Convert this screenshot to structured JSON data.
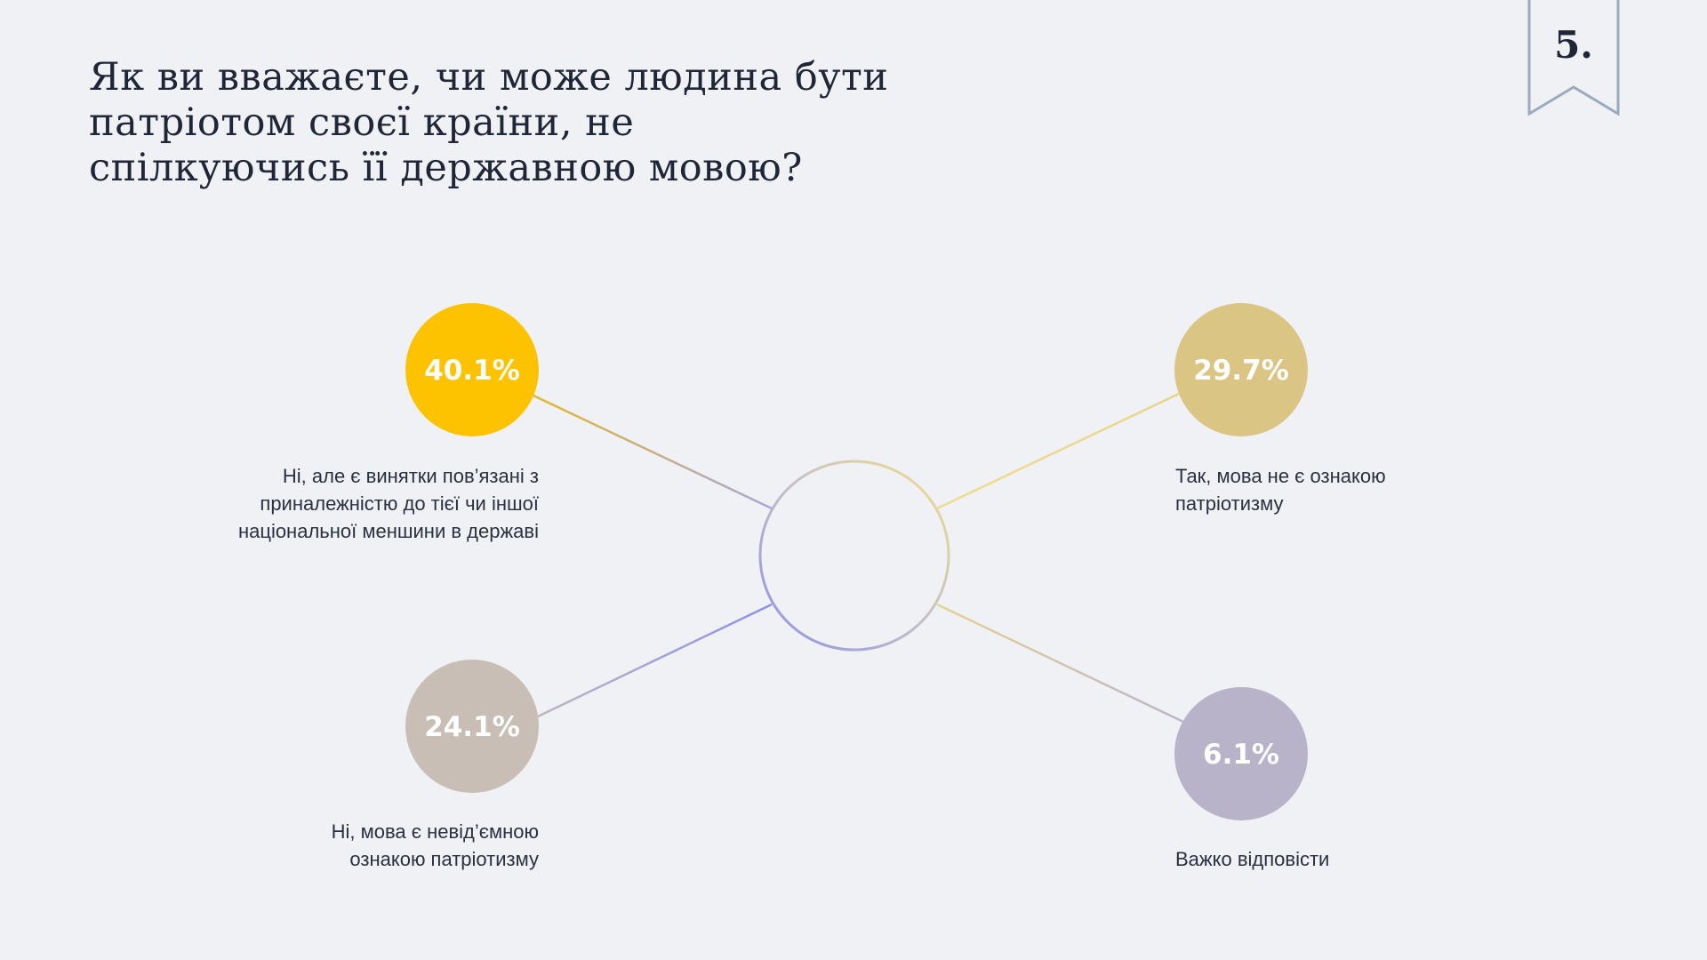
{
  "title": "Як ви вважаєте, чи може людина бути патріотом своєї країни, не спілкуючись її державною мовою?",
  "page_number": "5.",
  "chart_data": {
    "type": "pie",
    "title": "Як ви вважаєте, чи може людина бути патріотом своєї країни, не спілкуючись її державною мовою?",
    "categories": [
      "Ні, але є винятки пов’язані з приналежністю до тієї чи іншої національної меншини в державі",
      "Так, мова не є ознакою патріотизму",
      "Ні, мова є невід’ємною ознакою патріотизму",
      "Важко відповісти"
    ],
    "values": [
      40.1,
      29.7,
      24.1,
      6.1
    ],
    "value_labels": [
      "40.1%",
      "29.7%",
      "24.1%",
      "6.1%"
    ],
    "colors": [
      "#fdc200",
      "#dbc584",
      "#c8beb5",
      "#b8b3c8"
    ],
    "center_ring_colors": [
      "#8e8fe6",
      "#f0df8c"
    ]
  }
}
